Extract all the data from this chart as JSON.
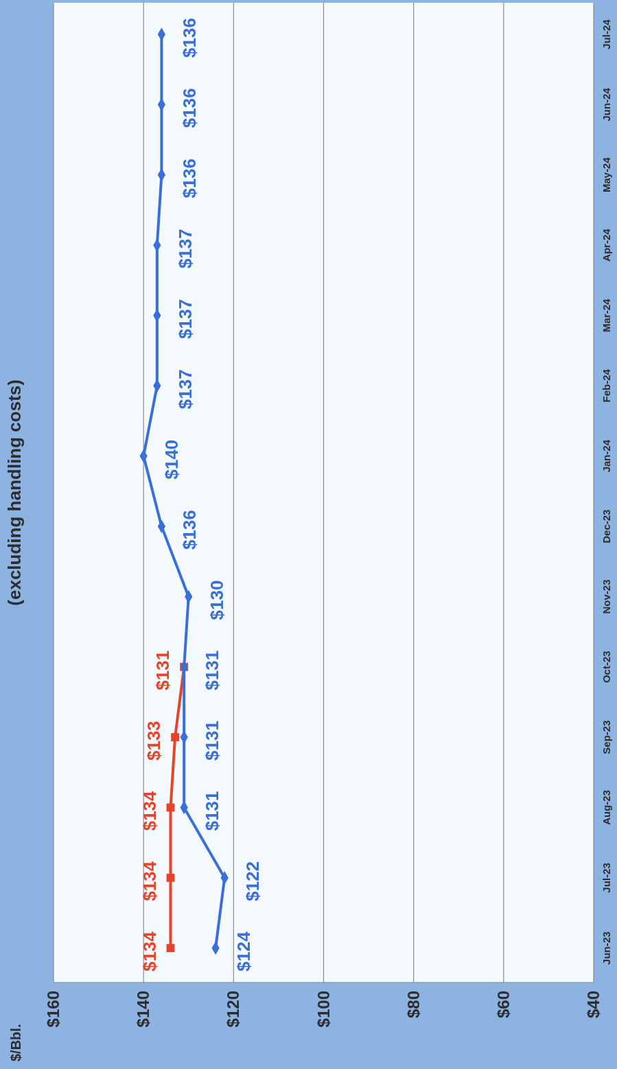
{
  "chart_data": {
    "type": "line",
    "orientation": "horizontal",
    "title": "(excluding handling costs)",
    "annotations": [
      "$/Bbl."
    ],
    "categories": [
      "Jul-24",
      "Jun-24",
      "May-24",
      "Apr-24",
      "Mar-24",
      "Feb-24",
      "Jan-24",
      "Dec-23",
      "Nov-23",
      "Oct-23",
      "Sep-23",
      "Aug-23",
      "Jul-23",
      "Jun-23"
    ],
    "series": [
      {
        "color": "#e8432a",
        "marker": "square",
        "values": [
          null,
          null,
          null,
          null,
          null,
          null,
          null,
          null,
          null,
          131,
          133,
          134,
          134,
          134
        ],
        "value_labels": [
          null,
          null,
          null,
          null,
          null,
          null,
          null,
          null,
          null,
          "$131",
          "$133",
          "$134",
          "$134",
          "$134"
        ]
      },
      {
        "color": "#3a6fd8",
        "marker": "diamond",
        "values": [
          136,
          136,
          136,
          137,
          137,
          137,
          140,
          136,
          130,
          131,
          131,
          131,
          122,
          124
        ],
        "value_labels": [
          "$136",
          "$136",
          "$136",
          "$137",
          "$137",
          "$137",
          "$140",
          "$136",
          "$130",
          "$131",
          "$131",
          "$131",
          "$122",
          "$124"
        ]
      }
    ],
    "xlim": [
      160,
      40
    ],
    "xticks": [
      {
        "value": 160,
        "label": "$160"
      },
      {
        "value": 140,
        "label": "$140"
      },
      {
        "value": 120,
        "label": "$120"
      },
      {
        "value": 100,
        "label": "$100"
      },
      {
        "value": 80,
        "label": "$80"
      },
      {
        "value": 60,
        "label": "$60"
      },
      {
        "value": 40,
        "label": "$40"
      }
    ],
    "grid": "x"
  }
}
